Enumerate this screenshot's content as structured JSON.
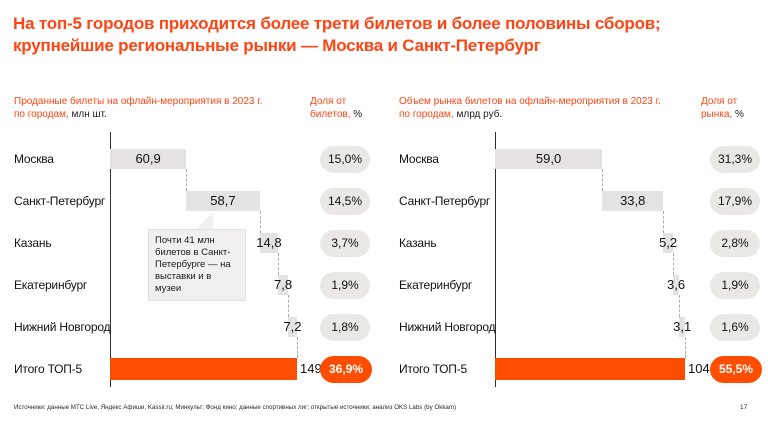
{
  "slide": {
    "title_line1": "На топ-5 городов приходится более трети билетов и более половины сборов;",
    "title_line2": "крупнейшие региональные рынки — Москва и Санкт-Петербург"
  },
  "colors": {
    "accent_orange": "#FF4514",
    "bar_orange": "#FF4D00",
    "bar_gray": "#E4E3E1",
    "pill_gray": "#E9E8E5",
    "callout_bg": "#F1F0EE"
  },
  "chart_data": [
    {
      "type": "bar",
      "variant": "waterfall",
      "header": {
        "line1": "Проданные билеты на офлайн-мероприятия в 2023 г.",
        "line2_orange": "по городам,",
        "unit": "млн шт."
      },
      "share_header": {
        "label": "Доля от билетов,",
        "unit": "%"
      },
      "categories": [
        "Москва",
        "Санкт-Петербург",
        "Казань",
        "Екатеринбург",
        "Нижний Новгород",
        "Итого ТОП-5"
      ],
      "values": [
        60.9,
        58.7,
        14.8,
        7.8,
        7.2,
        149.4
      ],
      "value_labels": [
        "60,9",
        "58,7",
        "14,8",
        "7,8",
        "7,2",
        "149,4"
      ],
      "share_labels": [
        "15,0%",
        "14,5%",
        "3,7%",
        "1,9%",
        "1,8%",
        "36,9%"
      ],
      "total_row_index": 5,
      "xlim": [
        0,
        149.4
      ],
      "legend": "none",
      "grid": "off",
      "callout": {
        "text": "Почти 41 млн билетов в Санкт-Петербурге — на выставки и в музеи"
      }
    },
    {
      "type": "bar",
      "variant": "waterfall",
      "header": {
        "line1": "Объем рынка билетов на офлайн-мероприятия в 2023 г.",
        "line2_orange": "по городам,",
        "unit": "млрд руб."
      },
      "share_header": {
        "label": "Доля от рынка,",
        "unit": "%"
      },
      "categories": [
        "Москва",
        "Санкт-Петербург",
        "Казань",
        "Екатеринбург",
        "Нижний Новгород",
        "Итого ТОП-5"
      ],
      "values": [
        59.0,
        33.8,
        5.2,
        3.6,
        3.1,
        104.7
      ],
      "value_labels": [
        "59,0",
        "33,8",
        "5,2",
        "3,6",
        "3,1",
        "104,7"
      ],
      "share_labels": [
        "31,3%",
        "17,9%",
        "2,8%",
        "1,9%",
        "1,6%",
        "55,5%"
      ],
      "total_row_index": 5,
      "xlim": [
        0,
        104.7
      ],
      "legend": "none",
      "grid": "off",
      "callout": null
    }
  ],
  "footer": {
    "sources": "Источники: данные МТС Live, Яндекс Афиши, Kassir.ru; Минкульт; Фонд кино; данные спортивных лиг; открытые источники; анализ OKS Labs (by Okkam)",
    "page": "17"
  }
}
